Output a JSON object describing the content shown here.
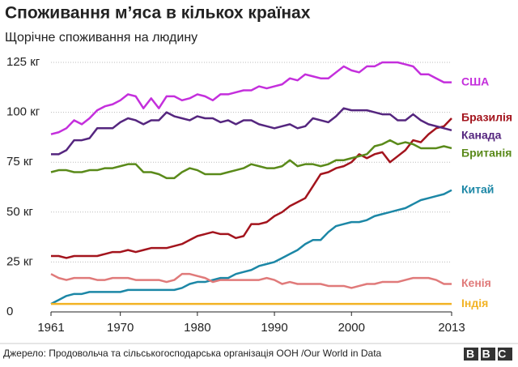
{
  "chart_data": {
    "type": "line",
    "title": "Споживання м’яса в кількох країнах",
    "subtitle": "Щорічне споживання на людину",
    "source": "Джерело: Продовольча та сільськогосподарська організація ООН /Our World in Data",
    "logo": "BBC",
    "x": [
      1961,
      1962,
      1963,
      1964,
      1965,
      1966,
      1967,
      1968,
      1969,
      1970,
      1971,
      1972,
      1973,
      1974,
      1975,
      1976,
      1977,
      1978,
      1979,
      1980,
      1981,
      1982,
      1983,
      1984,
      1985,
      1986,
      1987,
      1988,
      1989,
      1990,
      1991,
      1992,
      1993,
      1994,
      1995,
      1996,
      1997,
      1998,
      1999,
      2000,
      2001,
      2002,
      2003,
      2004,
      2005,
      2006,
      2007,
      2008,
      2009,
      2010,
      2011,
      2012,
      2013
    ],
    "xlim": [
      1961,
      2013
    ],
    "xticks": [
      1961,
      1970,
      1980,
      1990,
      2000,
      2013
    ],
    "ylim": [
      0,
      125
    ],
    "yticks": [
      0,
      {
        "value": 25,
        "label": "25 кг"
      },
      {
        "value": 50,
        "label": "50 кг"
      },
      {
        "value": 75,
        "label": "75 кг"
      },
      {
        "value": 100,
        "label": "100 кг"
      },
      {
        "value": 125,
        "label": "125 кг"
      }
    ],
    "grid": true,
    "series": [
      {
        "name": "США",
        "color": "#c42fdc",
        "values": [
          89,
          90,
          92,
          96,
          94,
          97,
          101,
          103,
          104,
          106,
          109,
          108,
          102,
          107,
          102,
          108,
          108,
          106,
          107,
          109,
          108,
          106,
          109,
          109,
          110,
          111,
          111,
          113,
          112,
          113,
          114,
          117,
          116,
          119,
          118,
          117,
          117,
          120,
          123,
          121,
          120,
          123,
          123,
          125,
          125,
          125,
          124,
          123,
          119,
          119,
          117,
          115,
          115
        ]
      },
      {
        "name": "Бразилія",
        "color": "#a3141d",
        "values": [
          28,
          28,
          27,
          28,
          28,
          28,
          28,
          29,
          30,
          30,
          31,
          30,
          31,
          32,
          32,
          32,
          33,
          34,
          36,
          38,
          39,
          40,
          39,
          39,
          37,
          38,
          44,
          44,
          45,
          48,
          50,
          53,
          55,
          57,
          63,
          69,
          70,
          72,
          73,
          75,
          79,
          77,
          79,
          80,
          75,
          78,
          81,
          86,
          85,
          89,
          92,
          93,
          97
        ]
      },
      {
        "name": "Канада",
        "color": "#55267f",
        "values": [
          79,
          79,
          81,
          86,
          86,
          87,
          92,
          92,
          92,
          95,
          97,
          96,
          94,
          96,
          96,
          100,
          98,
          97,
          96,
          98,
          97,
          97,
          95,
          96,
          94,
          96,
          96,
          94,
          93,
          92,
          93,
          94,
          92,
          93,
          97,
          96,
          95,
          98,
          102,
          101,
          101,
          101,
          100,
          99,
          99,
          96,
          96,
          99,
          96,
          94,
          93,
          92,
          91
        ]
      },
      {
        "name": "Британія",
        "color": "#5a8a1a",
        "values": [
          70,
          71,
          71,
          70,
          70,
          71,
          71,
          72,
          72,
          73,
          74,
          74,
          70,
          70,
          69,
          67,
          67,
          70,
          72,
          71,
          69,
          69,
          69,
          70,
          71,
          72,
          74,
          73,
          72,
          72,
          73,
          76,
          73,
          74,
          74,
          73,
          74,
          76,
          76,
          77,
          78,
          79,
          83,
          84,
          86,
          84,
          85,
          84,
          82,
          82,
          82,
          83,
          82
        ]
      },
      {
        "name": "Китай",
        "color": "#1c87a6",
        "values": [
          4,
          6,
          8,
          9,
          9,
          10,
          10,
          10,
          10,
          10,
          11,
          11,
          11,
          11,
          11,
          11,
          11,
          12,
          14,
          15,
          15,
          16,
          17,
          17,
          19,
          20,
          21,
          23,
          24,
          25,
          27,
          29,
          31,
          34,
          36,
          36,
          40,
          43,
          44,
          45,
          45,
          46,
          48,
          49,
          50,
          51,
          52,
          54,
          56,
          57,
          58,
          59,
          61
        ]
      },
      {
        "name": "Кенія",
        "color": "#e07a7a",
        "values": [
          19,
          17,
          16,
          17,
          17,
          17,
          16,
          16,
          17,
          17,
          17,
          16,
          16,
          16,
          16,
          15,
          16,
          19,
          19,
          18,
          17,
          15,
          16,
          16,
          16,
          16,
          16,
          16,
          17,
          16,
          14,
          15,
          14,
          14,
          14,
          14,
          13,
          13,
          13,
          12,
          13,
          14,
          14,
          15,
          15,
          15,
          16,
          17,
          17,
          17,
          16,
          14,
          14
        ]
      },
      {
        "name": "Індія",
        "color": "#f2b324",
        "values": [
          4,
          4,
          4,
          4,
          4,
          4,
          4,
          4,
          4,
          4,
          4,
          4,
          4,
          4,
          4,
          4,
          4,
          4,
          4,
          4,
          4,
          4,
          4,
          4,
          4,
          4,
          4,
          4,
          4,
          4,
          4,
          4,
          4,
          4,
          4,
          4,
          4,
          4,
          4,
          4,
          4,
          4,
          4,
          4,
          4,
          4,
          4,
          4,
          4,
          4,
          4,
          4,
          4
        ]
      }
    ]
  }
}
